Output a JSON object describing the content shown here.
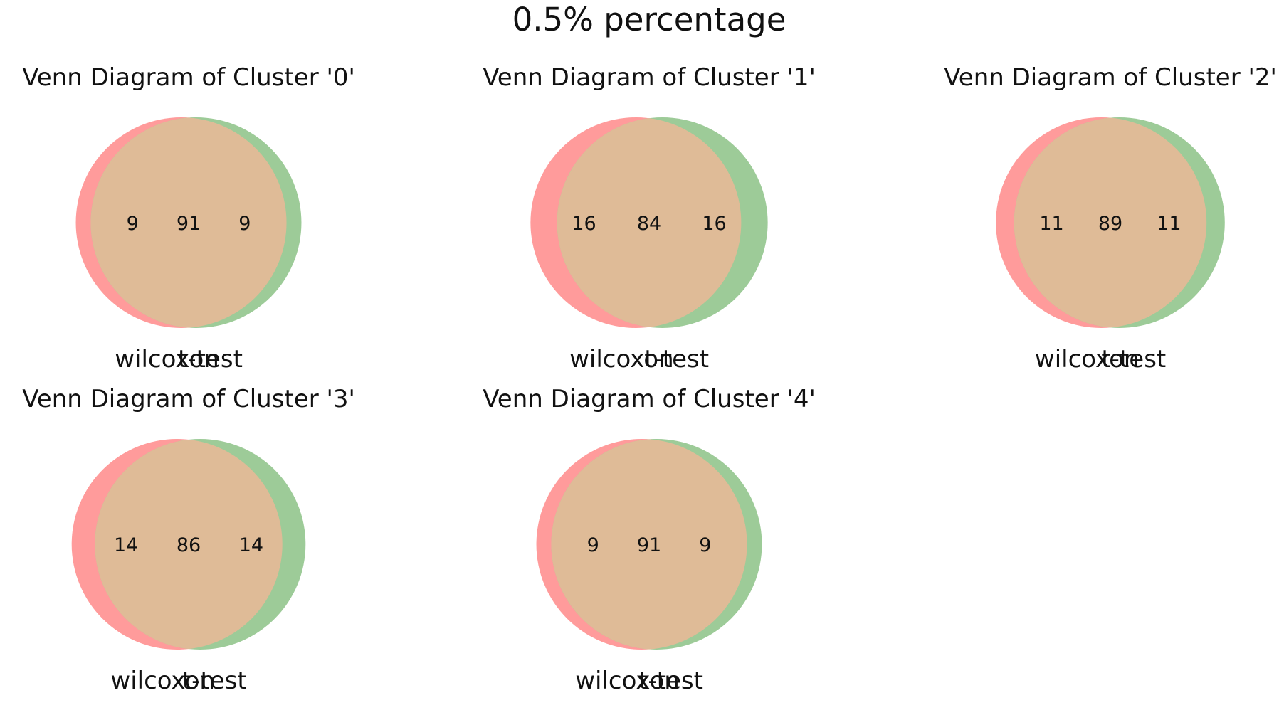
{
  "suptitle": "0.5% percentage",
  "colors": {
    "set_a": "#ff9b9b",
    "set_b": "#9dcb98",
    "overlap": "#dfbb97"
  },
  "panels": [
    {
      "title": "Venn Diagram of Cluster '0'",
      "set_a_label": "wilcoxon",
      "set_b_label": "t-test",
      "only_a": 9,
      "overlap": 91,
      "only_b": 9
    },
    {
      "title": "Venn Diagram of Cluster '1'",
      "set_a_label": "wilcoxon",
      "set_b_label": "t-test",
      "only_a": 16,
      "overlap": 84,
      "only_b": 16
    },
    {
      "title": "Venn Diagram of Cluster '2'",
      "set_a_label": "wilcoxon",
      "set_b_label": "t-test",
      "only_a": 11,
      "overlap": 89,
      "only_b": 11
    },
    {
      "title": "Venn Diagram of Cluster '3'",
      "set_a_label": "wilcoxon",
      "set_b_label": "t-test",
      "only_a": 14,
      "overlap": 86,
      "only_b": 14
    },
    {
      "title": "Venn Diagram of Cluster '4'",
      "set_a_label": "wilcoxon",
      "set_b_label": "t-test",
      "only_a": 9,
      "overlap": 91,
      "only_b": 9
    }
  ]
}
